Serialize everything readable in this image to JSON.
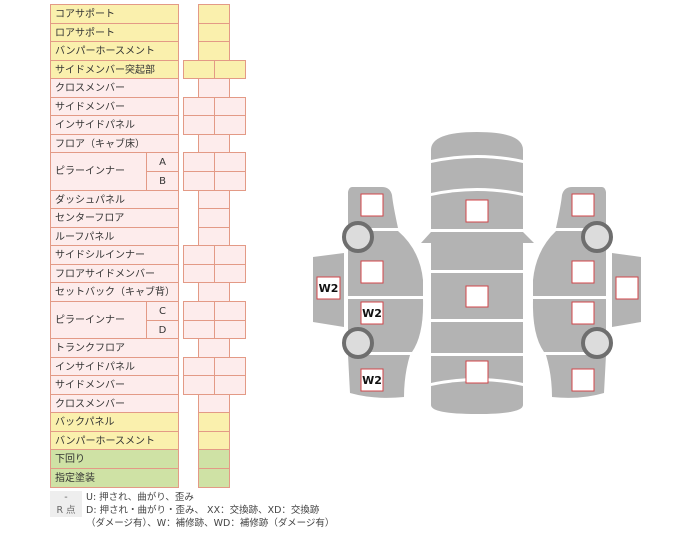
{
  "colors": {
    "yellow": "#faf0ad",
    "pink": "#fdecec",
    "green": "#cfe2a5",
    "border": "#e39a86",
    "body": "#b3b3b3",
    "mark_border": "#d0444a"
  },
  "table": {
    "rows": [
      {
        "label": "コアサポート",
        "cells": 1,
        "color": "yellow"
      },
      {
        "label": "ロアサポート",
        "cells": 1,
        "color": "yellow"
      },
      {
        "label": "バンパーホースメント",
        "cells": 1,
        "color": "yellow"
      },
      {
        "label": "サイドメンバー突起部",
        "cells": 2,
        "color": "yellow"
      },
      {
        "label": "クロスメンバー",
        "cells": 1,
        "color": "pink"
      },
      {
        "label": "サイドメンバー",
        "cells": 2,
        "color": "pink"
      },
      {
        "label": "インサイドパネル",
        "cells": 2,
        "color": "pink"
      },
      {
        "label": "フロア（キャブ床）",
        "cells": 1,
        "color": "pink"
      },
      {
        "label": "ピラーインナー",
        "subs": [
          "A",
          "B"
        ],
        "cells": 2,
        "color": "pink"
      },
      {
        "label": "ダッシュパネル",
        "cells": 1,
        "color": "pink"
      },
      {
        "label": "センターフロア",
        "cells": 1,
        "color": "pink"
      },
      {
        "label": "ルーフパネル",
        "cells": 1,
        "color": "pink"
      },
      {
        "label": "サイドシルインナー",
        "cells": 2,
        "color": "pink"
      },
      {
        "label": "フロアサイドメンバー",
        "cells": 2,
        "color": "pink"
      },
      {
        "label": "セットバック（キャブ背）",
        "cells": 1,
        "color": "pink"
      },
      {
        "label": "ピラーインナー",
        "subs": [
          "C",
          "D"
        ],
        "cells": 2,
        "color": "pink"
      },
      {
        "label": "トランクフロア",
        "cells": 1,
        "color": "pink"
      },
      {
        "label": "インサイドパネル",
        "cells": 2,
        "color": "pink"
      },
      {
        "label": "サイドメンバー",
        "cells": 2,
        "color": "pink"
      },
      {
        "label": "クロスメンバー",
        "cells": 1,
        "color": "pink"
      },
      {
        "label": "バックパネル",
        "cells": 1,
        "color": "yellow"
      },
      {
        "label": "バンパーホースメント",
        "cells": 1,
        "color": "yellow"
      },
      {
        "label": "下回り",
        "cells": 1,
        "color": "green"
      },
      {
        "label": "指定塗装",
        "cells": 1,
        "color": "green"
      }
    ]
  },
  "diagram": {
    "left_side": {
      "front_fender": "",
      "front_door_glass": "",
      "rear_door": "W2",
      "door_handle_panel": "W2",
      "rear_fender": "W2"
    },
    "top": {
      "hood": "",
      "roof": "",
      "trunk": ""
    },
    "right_side": {
      "front_fender": "",
      "front_door": "",
      "rear_door": "",
      "door_panel": "",
      "rear_fender": ""
    }
  },
  "legend": {
    "dash_key": "-",
    "dash_text": "U: 押され、曲がり、歪み",
    "r_key": "R 点",
    "r_text1": "D: 押され・曲がり・歪み、 XX：交換跡、XD：交換跡",
    "r_text2": "（ダメージ有）、W：補修跡、WD：補修跡（ダメージ有）"
  }
}
